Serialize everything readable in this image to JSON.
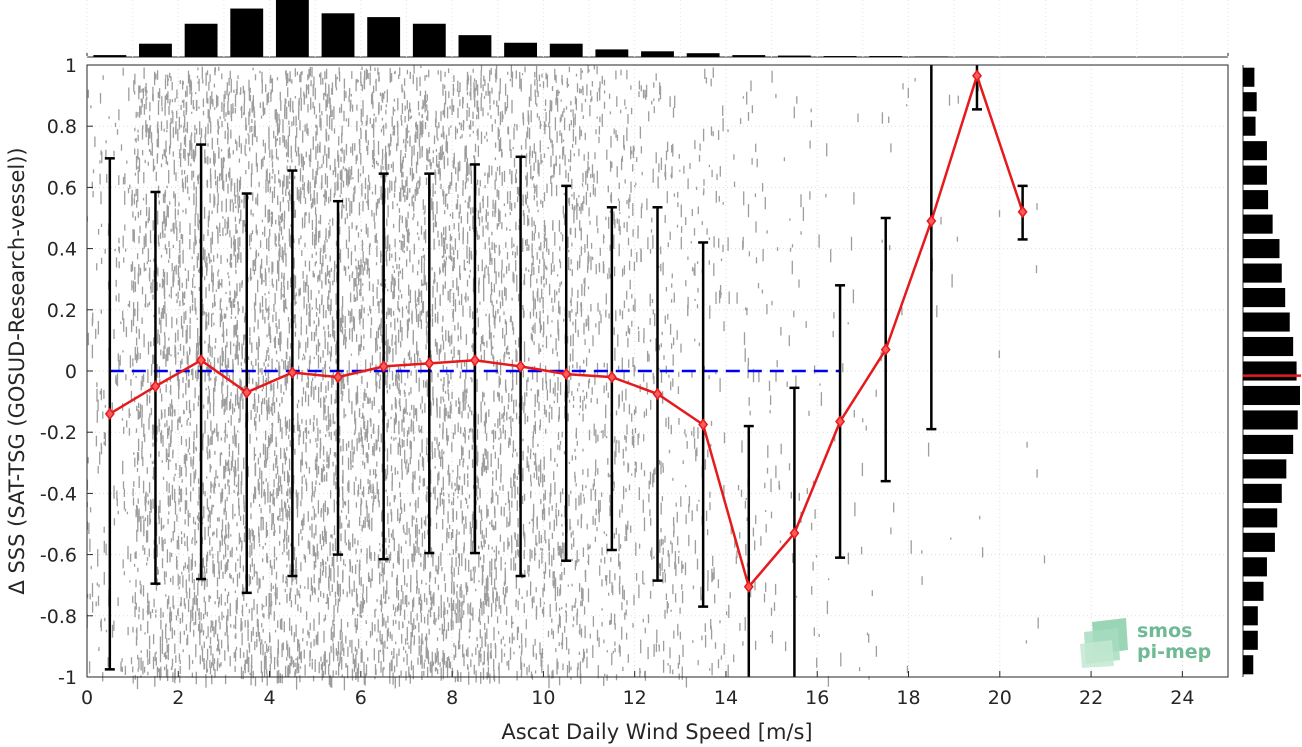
{
  "chart_data": {
    "type": "line",
    "title": "",
    "xlabel": "Ascat Daily Wind Speed [m/s]",
    "ylabel": "Δ SSS (SAT-TSG (GOSUD-Research-vessel))",
    "xlim": [
      0,
      25
    ],
    "ylim": [
      -1,
      1
    ],
    "xticks": [
      "0",
      "2",
      "4",
      "6",
      "8",
      "10",
      "12",
      "14",
      "16",
      "18",
      "20",
      "22",
      "24"
    ],
    "yticks": [
      "-1",
      "-0.8",
      "-0.6",
      "-0.4",
      "-0.2",
      "0",
      "0.2",
      "0.4",
      "0.6",
      "0.8",
      "1"
    ],
    "grid": true,
    "reference_line": {
      "y": 0,
      "color": "#0000ee",
      "style": "dashed"
    },
    "series": [
      {
        "color": "#e41a1c",
        "marker": "diamond",
        "x": [
          0.5,
          1.5,
          2.5,
          3.5,
          4.5,
          5.5,
          6.5,
          7.5,
          8.5,
          9.5,
          10.5,
          11.5,
          12.5,
          13.5,
          14.5,
          15.5,
          16.5,
          17.5,
          18.5,
          19.5,
          20.5
        ],
        "values": [
          -0.14,
          -0.05,
          0.035,
          -0.07,
          -0.005,
          -0.02,
          0.015,
          0.025,
          0.035,
          0.015,
          -0.01,
          -0.02,
          -0.075,
          -0.175,
          -0.705,
          -0.53,
          -0.165,
          0.07,
          0.49,
          0.965,
          0.52
        ],
        "error_low": [
          -0.975,
          -0.695,
          -0.68,
          -0.725,
          -0.67,
          -0.6,
          -0.615,
          -0.595,
          -0.595,
          -0.67,
          -0.62,
          -0.585,
          -0.685,
          -0.77,
          -1.0,
          -1.0,
          -0.61,
          -0.36,
          -0.19,
          0.855,
          0.43
        ],
        "error_high": [
          0.695,
          0.585,
          0.74,
          0.58,
          0.655,
          0.555,
          0.645,
          0.645,
          0.675,
          0.7,
          0.605,
          0.535,
          0.535,
          0.42,
          -0.18,
          -0.055,
          0.28,
          0.5,
          1.0,
          1.0,
          0.605
        ]
      }
    ],
    "top_histogram": {
      "x": [
        0.5,
        1.5,
        2.5,
        3.5,
        4.5,
        5.5,
        6.5,
        7.5,
        8.5,
        9.5,
        10.5,
        11.5,
        12.5,
        13.5,
        14.5,
        15.5,
        16.5,
        17.5,
        18.5,
        19.5,
        20.5
      ],
      "counts": [
        2,
        14,
        35,
        51,
        60,
        46,
        42,
        35,
        23,
        15,
        14,
        8,
        6,
        4,
        2,
        1.5,
        1,
        1,
        0.6,
        0.4,
        0.3
      ]
    },
    "right_histogram": {
      "y": [
        0.96,
        0.88,
        0.8,
        0.72,
        0.64,
        0.56,
        0.48,
        0.4,
        0.32,
        0.24,
        0.16,
        0.08,
        0.0,
        -0.08,
        -0.16,
        -0.24,
        -0.32,
        -0.4,
        -0.48,
        -0.56,
        -0.64,
        -0.72,
        -0.8,
        -0.88,
        -0.96
      ],
      "counts": [
        10,
        12,
        11,
        21,
        21,
        22,
        26,
        32,
        34,
        37,
        41,
        44,
        47,
        50,
        48,
        44,
        38,
        34,
        30,
        28,
        21,
        18,
        13,
        13,
        9
      ],
      "median_marker": {
        "y": -0.015,
        "color": "#e41a1c"
      }
    },
    "logo": {
      "line1": "smos",
      "line2": "pi-mep"
    }
  }
}
